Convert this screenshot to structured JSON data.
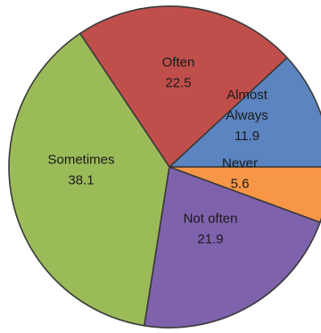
{
  "chart_data": {
    "type": "pie",
    "start_angle_deg": 0,
    "direction": "counterclockwise",
    "slices": [
      {
        "label": [
          "Almost",
          "Always"
        ],
        "value": 11.9,
        "value_text": "11.9",
        "color": "#5b84c0"
      },
      {
        "label": [
          "Often"
        ],
        "value": 22.5,
        "value_text": "22.5",
        "color": "#c04f4c"
      },
      {
        "label": [
          "Sometimes"
        ],
        "value": 38.1,
        "value_text": "38.1",
        "color": "#9bbb59"
      },
      {
        "label": [
          "Not often"
        ],
        "value": 21.9,
        "value_text": "21.9",
        "color": "#7f62ac"
      },
      {
        "label": [
          "Never"
        ],
        "value": 5.6,
        "value_text": "5.6",
        "color": "#f79647"
      }
    ],
    "legend": "none",
    "title": ""
  }
}
